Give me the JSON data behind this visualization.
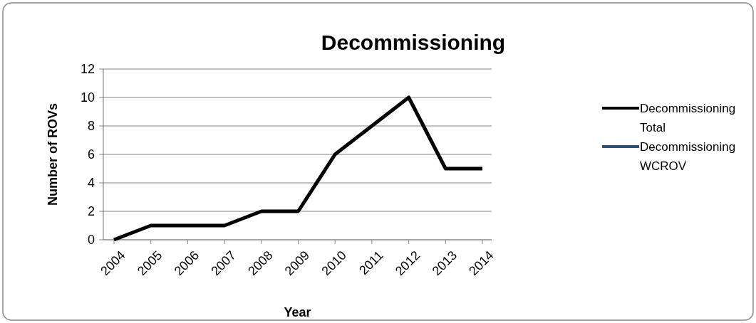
{
  "chart_data": {
    "type": "line",
    "title": "Decommissioning",
    "xlabel": "Year",
    "ylabel": "Number of ROVs",
    "categories": [
      "2004",
      "2005",
      "2006",
      "2007",
      "2008",
      "2009",
      "2010",
      "2011",
      "2012",
      "2013",
      "2014"
    ],
    "series": [
      {
        "name": "Decommissioning Total",
        "color": "#000000",
        "values": [
          0,
          1,
          1,
          1,
          2,
          2,
          6,
          8,
          10,
          5,
          5
        ]
      },
      {
        "name": "Decommissioning WCROV",
        "color": "#2f4f7f",
        "values": [
          null,
          null,
          null,
          null,
          null,
          null,
          null,
          null,
          null,
          null,
          null
        ]
      }
    ],
    "ylim": [
      0,
      12
    ],
    "yticks": [
      0,
      2,
      4,
      6,
      8,
      10,
      12
    ],
    "grid": "y",
    "legend": "right",
    "line_style": "solid"
  }
}
